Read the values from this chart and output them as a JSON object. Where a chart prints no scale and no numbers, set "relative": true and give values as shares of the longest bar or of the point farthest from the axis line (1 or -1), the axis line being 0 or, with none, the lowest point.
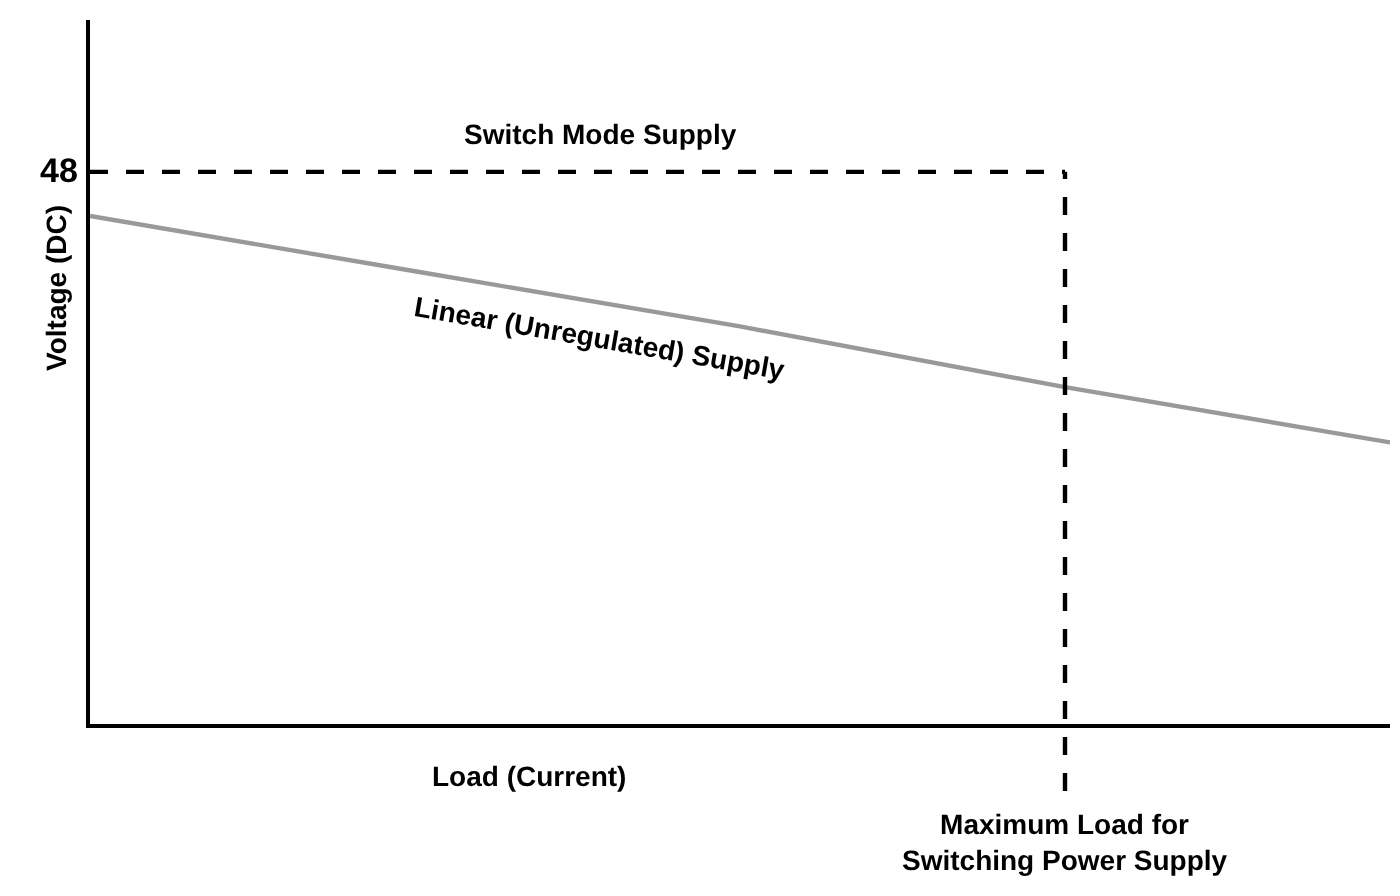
{
  "chart_data": {
    "type": "line",
    "relative": true,
    "xlabel": "Load (Current)",
    "ylabel": "Voltage (DC)",
    "categories": [
      null,
      null,
      null,
      null,
      null
    ],
    "series": [
      {
        "name": "Switch Mode Supply",
        "color": "#000000",
        "line_style": "dashed",
        "values": [
          1,
          1,
          1,
          1,
          null
        ]
      },
      {
        "name": "Linear (Unregulated) Supply",
        "color": "#999999",
        "line_style": "solid",
        "values": [
          0.92,
          0.82,
          0.72,
          0.61,
          0.51
        ]
      }
    ],
    "annotations": [
      "48",
      "Maximum Load for\nSwitching Power Supply"
    ],
    "legend": false,
    "marker": "none"
  }
}
